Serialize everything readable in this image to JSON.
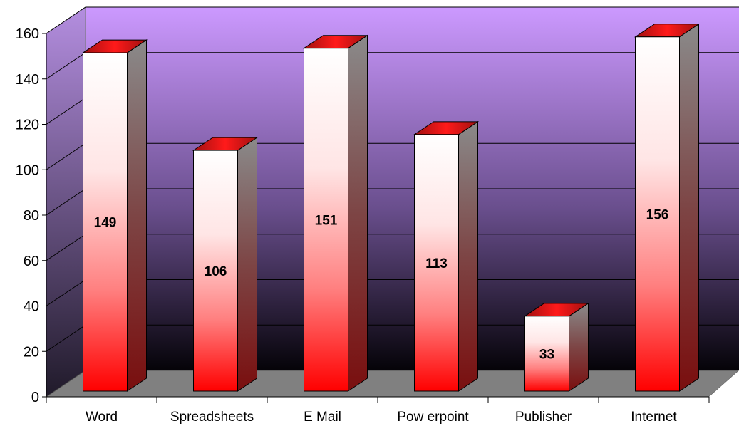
{
  "chart_data": {
    "type": "bar",
    "style": "3d-column",
    "categories": [
      "Word",
      "Spreadsheets",
      "E Mail",
      "Pow erpoint",
      "Publisher",
      "Internet"
    ],
    "values": [
      149,
      106,
      151,
      113,
      33,
      156
    ],
    "data_labels": [
      "149",
      "106",
      "151",
      "113",
      "33",
      "156"
    ],
    "ylim": [
      0,
      160
    ],
    "yticks": [
      0,
      20,
      40,
      60,
      80,
      100,
      120,
      140,
      160
    ],
    "ytick_labels": [
      "0",
      "20",
      "40",
      "60",
      "80",
      "100",
      "120",
      "140",
      "160"
    ],
    "title": "",
    "xlabel": "",
    "ylabel": "",
    "grid": true,
    "legend": "none",
    "colors": {
      "wall_top": "#cc99ff",
      "wall_bottom": "#000000",
      "side_wall": "#9a7fb8",
      "floor": "#808080",
      "bar_top": "#ff0000",
      "bar_bottom_mid": "#ffffff",
      "bar_side": "#7a1e1e",
      "gridline": "#000000",
      "axis_text": "#000000"
    }
  }
}
